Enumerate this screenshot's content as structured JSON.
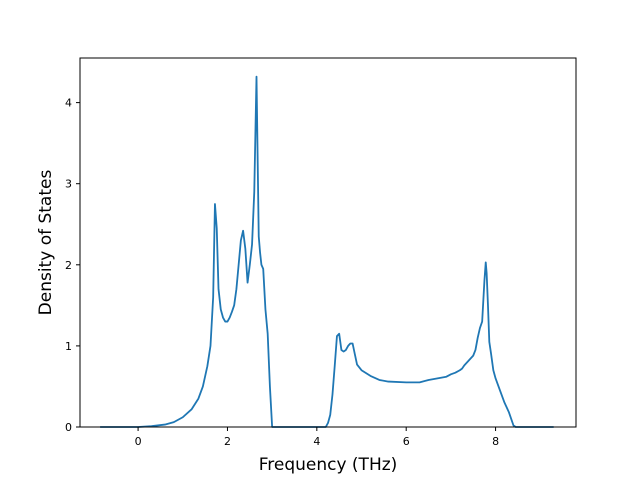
{
  "chart_data": {
    "type": "line",
    "title": "",
    "xlabel": "Frequency (THz)",
    "ylabel": "Density of States",
    "xlim": [
      -1.3,
      9.8
    ],
    "ylim": [
      0,
      4.55
    ],
    "xticks": [
      0,
      2,
      4,
      6,
      8
    ],
    "yticks": [
      0,
      1,
      2,
      3,
      4
    ],
    "grid": false,
    "legend": "none",
    "series": [
      {
        "color": "#1f77b4",
        "x": [
          -0.85,
          0.0,
          0.3,
          0.6,
          0.8,
          1.0,
          1.2,
          1.35,
          1.45,
          1.55,
          1.62,
          1.68,
          1.72,
          1.76,
          1.8,
          1.85,
          1.9,
          1.95,
          2.0,
          2.05,
          2.1,
          2.15,
          2.2,
          2.25,
          2.3,
          2.35,
          2.4,
          2.45,
          2.5,
          2.55,
          2.6,
          2.65,
          2.7,
          2.73,
          2.76,
          2.8,
          2.85,
          2.9,
          2.95,
          3.0,
          3.05,
          3.08,
          3.5,
          4.2,
          4.25,
          4.3,
          4.35,
          4.4,
          4.45,
          4.5,
          4.55,
          4.6,
          4.65,
          4.7,
          4.75,
          4.8,
          4.85,
          4.9,
          5.0,
          5.2,
          5.4,
          5.6,
          6.0,
          6.3,
          6.5,
          6.7,
          6.9,
          7.0,
          7.1,
          7.2,
          7.25,
          7.3,
          7.4,
          7.5,
          7.55,
          7.6,
          7.65,
          7.7,
          7.75,
          7.78,
          7.8,
          7.83,
          7.86,
          7.9,
          7.95,
          8.0,
          8.1,
          8.2,
          8.3,
          8.4,
          8.45,
          8.5,
          9.3
        ],
        "y": [
          0.0,
          0.0,
          0.01,
          0.03,
          0.06,
          0.12,
          0.22,
          0.35,
          0.5,
          0.75,
          1.0,
          1.6,
          2.75,
          2.45,
          1.7,
          1.45,
          1.35,
          1.3,
          1.3,
          1.35,
          1.42,
          1.5,
          1.7,
          2.0,
          2.3,
          2.42,
          2.2,
          1.78,
          2.0,
          2.25,
          2.9,
          4.32,
          2.35,
          2.15,
          2.0,
          1.95,
          1.45,
          1.15,
          0.5,
          0.0,
          0.0,
          0.0,
          0.0,
          0.0,
          0.05,
          0.15,
          0.4,
          0.75,
          1.12,
          1.15,
          0.95,
          0.93,
          0.95,
          1.0,
          1.03,
          1.03,
          0.9,
          0.77,
          0.7,
          0.63,
          0.58,
          0.56,
          0.55,
          0.55,
          0.58,
          0.6,
          0.62,
          0.65,
          0.67,
          0.7,
          0.72,
          0.76,
          0.82,
          0.88,
          0.95,
          1.1,
          1.22,
          1.3,
          1.8,
          2.03,
          1.9,
          1.5,
          1.05,
          0.9,
          0.7,
          0.6,
          0.45,
          0.3,
          0.18,
          0.02,
          0.0,
          0.0,
          0.0
        ]
      }
    ]
  }
}
